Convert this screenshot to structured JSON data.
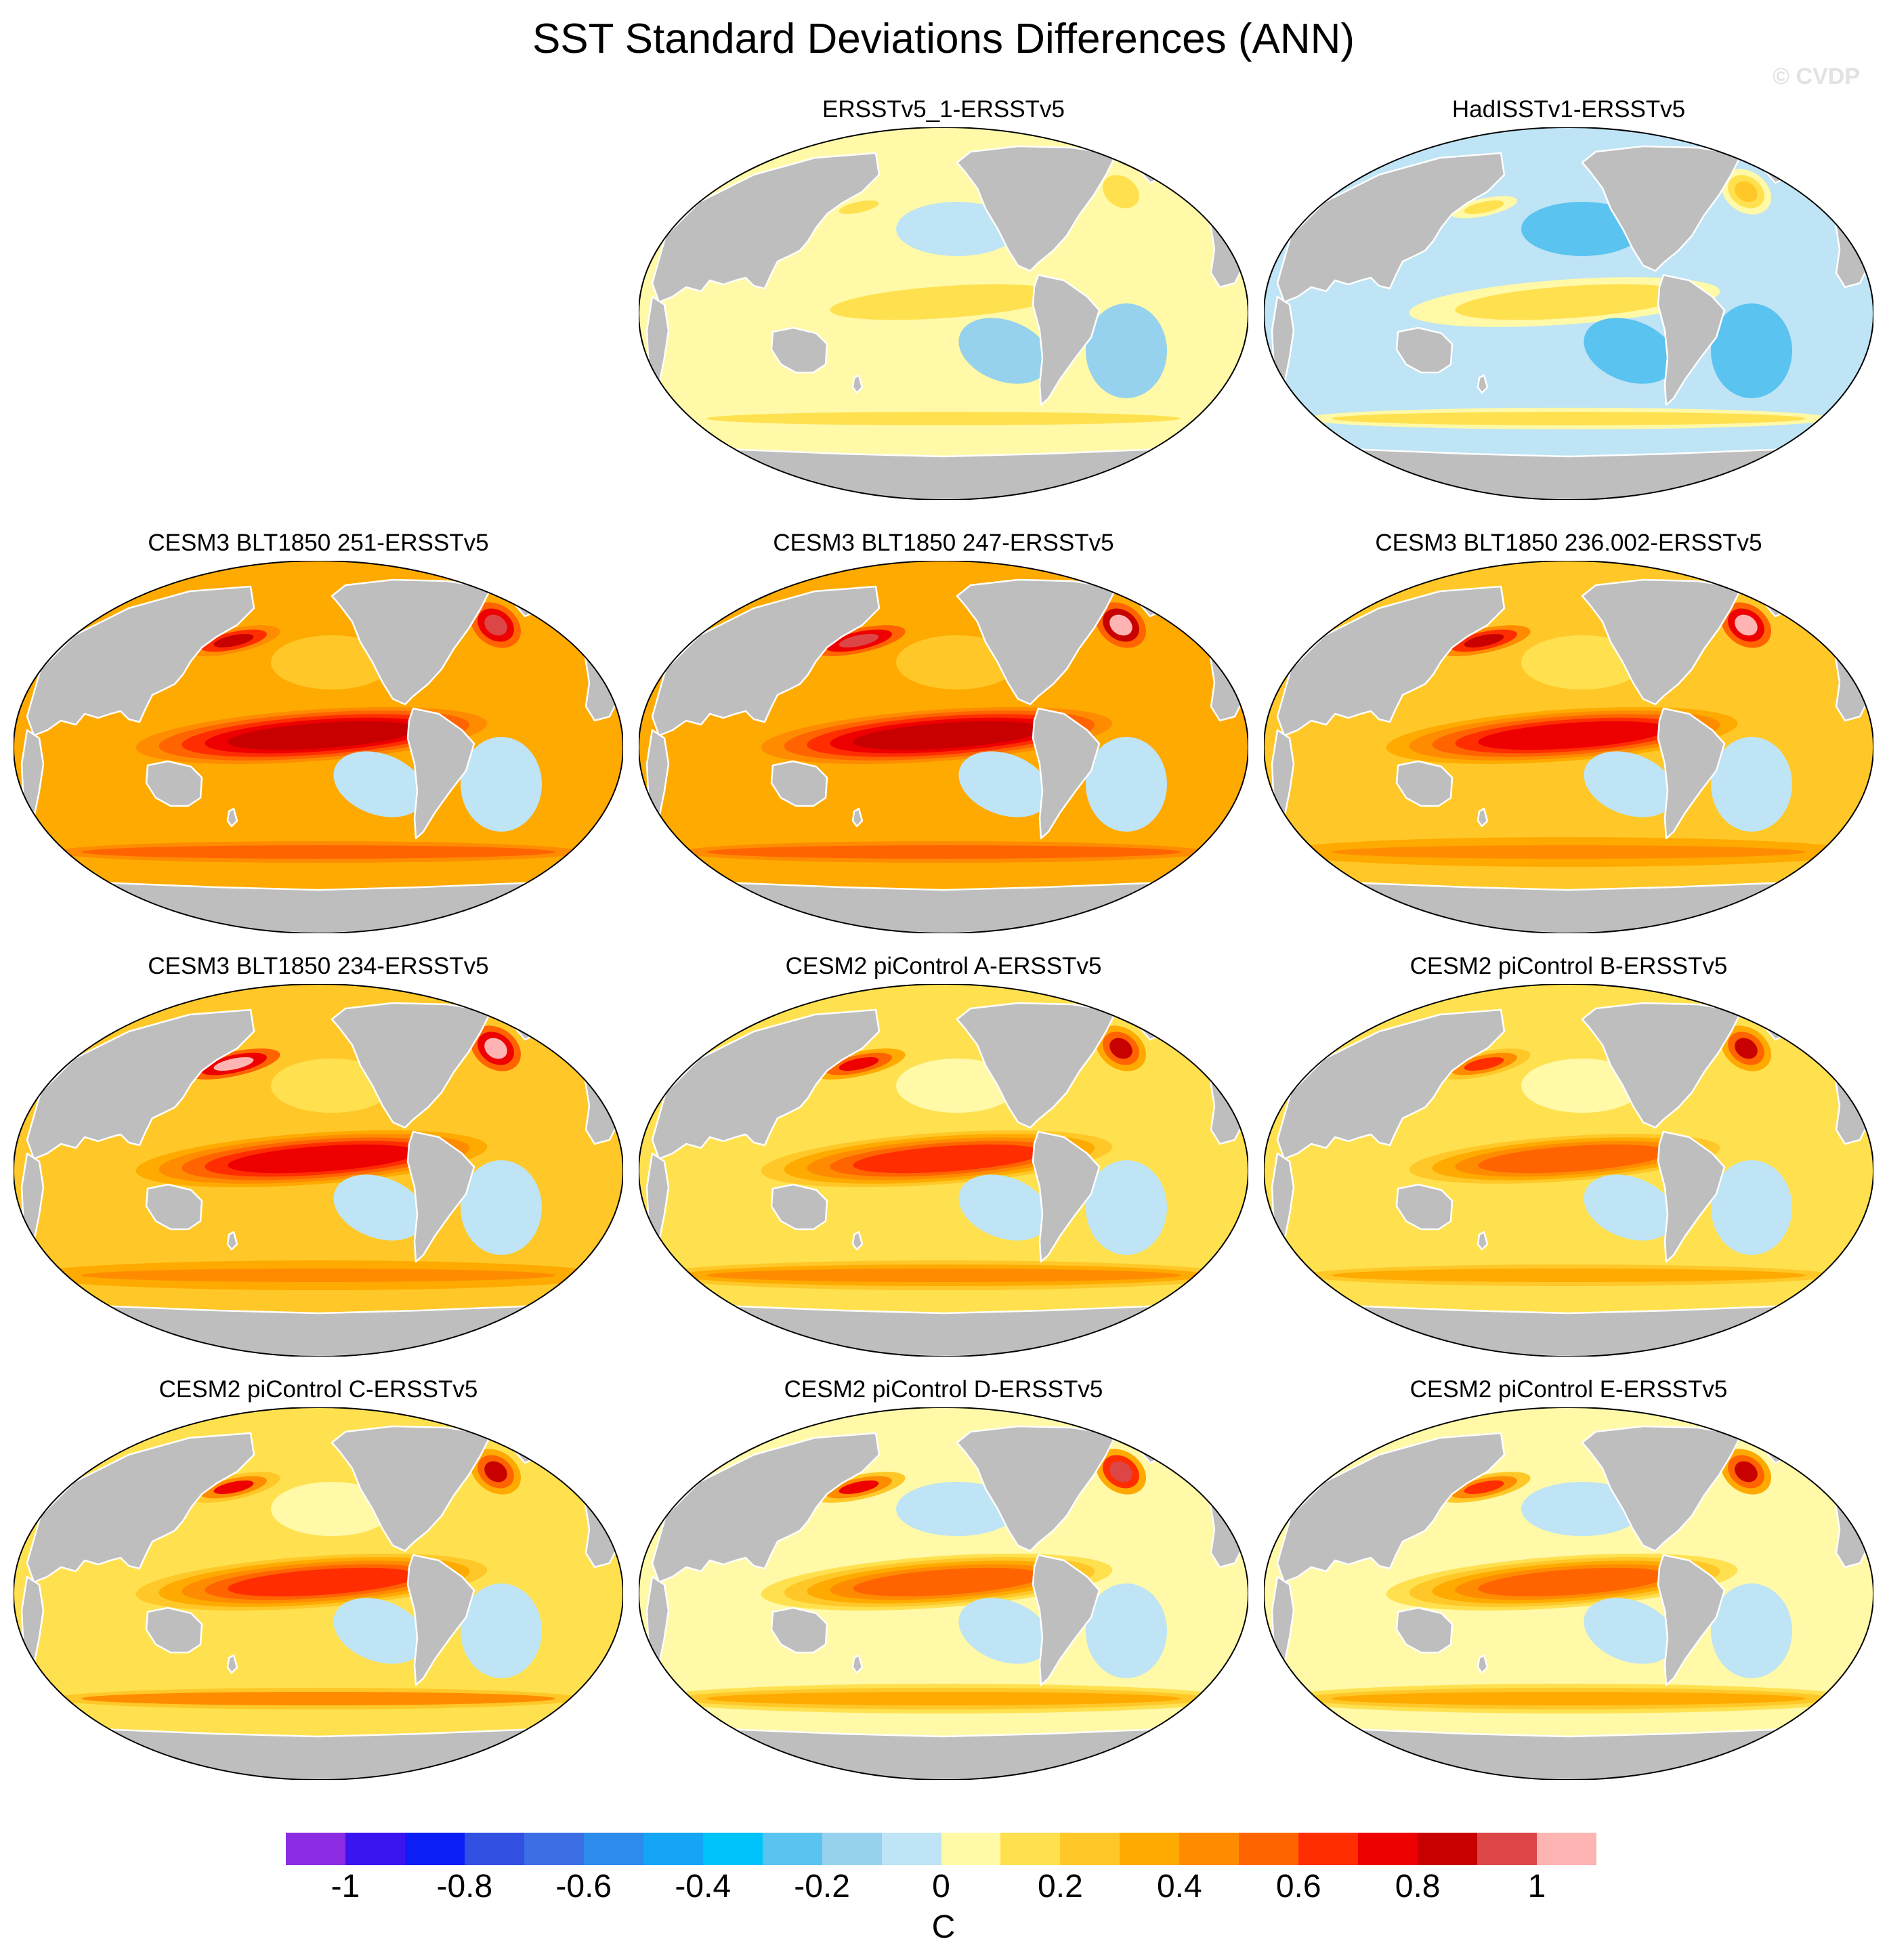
{
  "title": "SST Standard Deviations Differences (ANN)",
  "watermark": "© CVDP",
  "colorbar": {
    "unit": "C",
    "tick_labels": [
      "-1",
      "-0.8",
      "-0.6",
      "-0.4",
      "-0.2",
      "0",
      "0.2",
      "0.4",
      "0.6",
      "0.8",
      "1"
    ],
    "colors": [
      "#8b2be2",
      "#3c14f0",
      "#0a1ef5",
      "#3250e1",
      "#3c6ee6",
      "#2d8ceb",
      "#14a5f5",
      "#00c3fa",
      "#5ac3f0",
      "#96d2ee",
      "#bee4f5",
      "#fff9a8",
      "#ffe150",
      "#ffc828",
      "#ffaa00",
      "#ff8c00",
      "#ff6400",
      "#ff2d00",
      "#ee0000",
      "#c80000",
      "#dc4646",
      "#ffb4b4"
    ]
  },
  "chart_data": {
    "type": "heatmap",
    "title": "SST Standard Deviations Differences (ANN)",
    "projection": "robinson",
    "variable": "SST standard deviation difference",
    "units": "C",
    "levels": [
      -1.1,
      -1.0,
      -0.9,
      -0.8,
      -0.7,
      -0.6,
      -0.5,
      -0.4,
      -0.3,
      -0.2,
      -0.1,
      0,
      0.1,
      0.2,
      0.3,
      0.4,
      0.5,
      0.6,
      0.7,
      0.8,
      0.9,
      1.0
    ],
    "panels": [
      {
        "title": "ERSSTv5_1-ERSSTv5",
        "enso_max": 0.05,
        "kuroshio_max": 0.0,
        "gulfstream_max": 0.1,
        "background": -0.08
      },
      {
        "title": "HadISSTv1-ERSSTv5",
        "enso_max": 0.05,
        "kuroshio_max": 0.0,
        "gulfstream_max": 0.1,
        "background": -0.2
      },
      {
        "title": "CESM3 BLT1850 251-ERSSTv5",
        "enso_max": 0.7,
        "kuroshio_max": 0.7,
        "gulfstream_max": 0.9,
        "background": 0.2
      },
      {
        "title": "CESM3 BLT1850 247-ERSSTv5",
        "enso_max": 0.7,
        "kuroshio_max": 0.9,
        "gulfstream_max": 1.0,
        "background": 0.2
      },
      {
        "title": "CESM3 BLT1850 236.002-ERSSTv5",
        "enso_max": 0.6,
        "kuroshio_max": 0.7,
        "gulfstream_max": 0.9,
        "background": 0.15
      },
      {
        "title": "CESM3 BLT1850 234-ERSSTv5",
        "enso_max": 0.6,
        "kuroshio_max": 0.9,
        "gulfstream_max": 0.9,
        "background": 0.15
      },
      {
        "title": "CESM2 piControl A-ERSSTv5",
        "enso_max": 0.5,
        "kuroshio_max": 0.6,
        "gulfstream_max": 0.7,
        "background": 0.05
      },
      {
        "title": "CESM2 piControl B-ERSSTv5",
        "enso_max": 0.4,
        "kuroshio_max": 0.5,
        "gulfstream_max": 0.7,
        "background": 0.0
      },
      {
        "title": "CESM2 piControl C-ERSSTv5",
        "enso_max": 0.5,
        "kuroshio_max": 0.6,
        "gulfstream_max": 0.7,
        "background": 0.0
      },
      {
        "title": "CESM2 piControl D-ERSSTv5",
        "enso_max": 0.4,
        "kuroshio_max": 0.6,
        "gulfstream_max": 0.8,
        "background": -0.02
      },
      {
        "title": "CESM2 piControl E-ERSSTv5",
        "enso_max": 0.4,
        "kuroshio_max": 0.5,
        "gulfstream_max": 0.7,
        "background": -0.02
      }
    ]
  }
}
